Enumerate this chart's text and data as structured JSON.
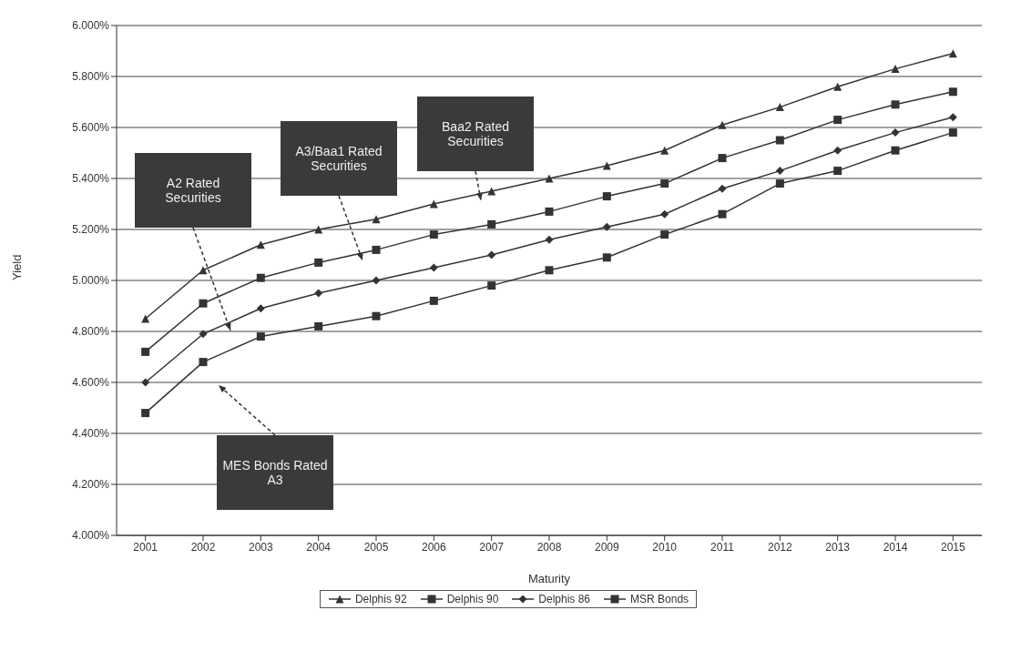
{
  "chart_data": {
    "type": "line",
    "xlabel": "Maturity",
    "ylabel": "Yield",
    "categories": [
      "2001",
      "2002",
      "2003",
      "2004",
      "2005",
      "2006",
      "2007",
      "2008",
      "2009",
      "2010",
      "2011",
      "2012",
      "2013",
      "2014",
      "2015"
    ],
    "ylim": [
      4.0,
      6.0
    ],
    "yticks": [
      {
        "value": 4.0,
        "label": "4.000%"
      },
      {
        "value": 4.2,
        "label": "4.200%"
      },
      {
        "value": 4.4,
        "label": "4.400%"
      },
      {
        "value": 4.6,
        "label": "4.600%"
      },
      {
        "value": 4.8,
        "label": "4.800%"
      },
      {
        "value": 5.0,
        "label": "5.000%"
      },
      {
        "value": 5.2,
        "label": "5.200%"
      },
      {
        "value": 5.4,
        "label": "5.400%"
      },
      {
        "value": 5.6,
        "label": "5.600%"
      },
      {
        "value": 5.8,
        "label": "5.800%"
      },
      {
        "value": 6.0,
        "label": "6.000%"
      }
    ],
    "grid": "y",
    "legend": "bottom",
    "line_style": "solid",
    "series": [
      {
        "name": "Delphis 92",
        "color": "#333333",
        "marker": "triangle",
        "values": [
          4.85,
          5.04,
          5.14,
          5.2,
          5.24,
          5.3,
          5.35,
          5.4,
          5.45,
          5.51,
          5.61,
          5.68,
          5.76,
          5.83,
          5.89
        ]
      },
      {
        "name": "Delphis 90",
        "color": "#333333",
        "marker": "square",
        "values": [
          4.72,
          4.91,
          5.01,
          5.07,
          5.12,
          5.18,
          5.22,
          5.27,
          5.33,
          5.38,
          5.48,
          5.55,
          5.63,
          5.69,
          5.74
        ]
      },
      {
        "name": "Delphis 86",
        "color": "#333333",
        "marker": "diamond",
        "values": [
          4.6,
          4.79,
          4.89,
          4.95,
          5.0,
          5.05,
          5.1,
          5.16,
          5.21,
          5.26,
          5.36,
          5.43,
          5.51,
          5.58,
          5.64
        ]
      },
      {
        "name": "MSR Bonds",
        "color": "#333333",
        "marker": "square",
        "values": [
          4.48,
          4.68,
          4.78,
          4.82,
          4.86,
          4.92,
          4.98,
          5.04,
          5.09,
          5.18,
          5.26,
          5.38,
          5.43,
          5.51,
          5.58
        ]
      }
    ],
    "annotations": [
      "A2 Rated Securities",
      "A3/Baa1 Rated Securities",
      "Baa2 Rated Securities",
      "MES Bonds Rated A3"
    ]
  }
}
